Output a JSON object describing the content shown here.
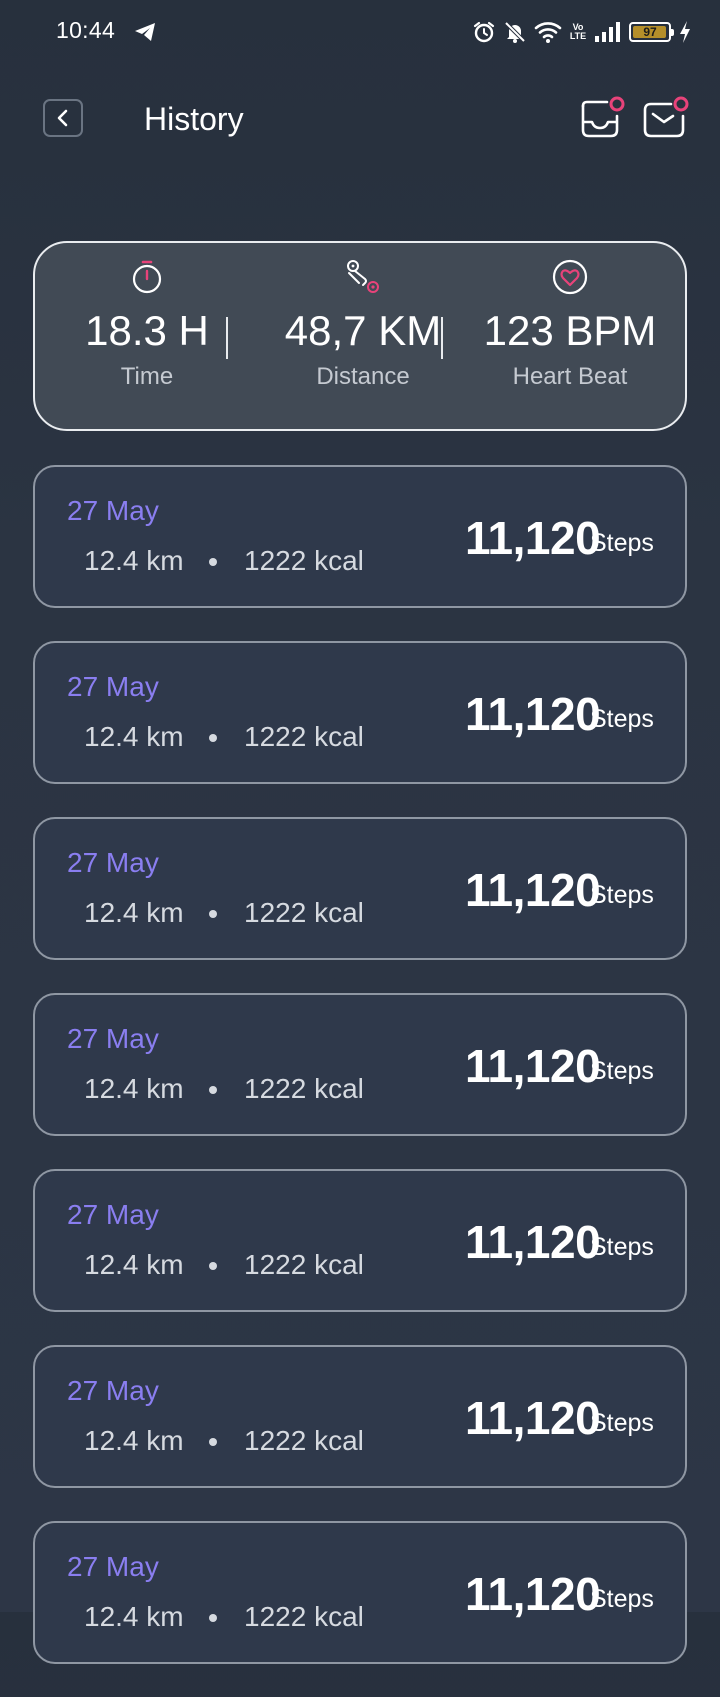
{
  "status_bar": {
    "time": "10:44",
    "battery": "97",
    "network_badge": "Vo LTE",
    "icons": [
      "telegram-icon",
      "alarm-icon",
      "bell-muted-icon",
      "wifi-icon",
      "signal-icon",
      "battery-icon",
      "charging-icon"
    ]
  },
  "header": {
    "title": "History",
    "back_icon": "chevron-left-icon",
    "actions": [
      "inbox-icon",
      "mail-icon"
    ]
  },
  "summary": {
    "time": {
      "value": "18.3 H",
      "label": "Time",
      "icon": "stopwatch-icon"
    },
    "distance": {
      "value": "48,7 KM",
      "label": "Distance",
      "icon": "route-icon"
    },
    "heart": {
      "value": "123 BPM",
      "label": "Heart Beat",
      "icon": "heart-icon"
    }
  },
  "history": [
    {
      "date": "27 May",
      "distance": "12.4 km",
      "kcal": "1222 kcal",
      "steps": "11,120",
      "steps_label": "Steps"
    },
    {
      "date": "27 May",
      "distance": "12.4 km",
      "kcal": "1222 kcal",
      "steps": "11,120",
      "steps_label": "Steps"
    },
    {
      "date": "27 May",
      "distance": "12.4 km",
      "kcal": "1222 kcal",
      "steps": "11,120",
      "steps_label": "Steps"
    },
    {
      "date": "27 May",
      "distance": "12.4 km",
      "kcal": "1222 kcal",
      "steps": "11,120",
      "steps_label": "Steps"
    },
    {
      "date": "27 May",
      "distance": "12.4 km",
      "kcal": "1222 kcal",
      "steps": "11,120",
      "steps_label": "Steps"
    },
    {
      "date": "27 May",
      "distance": "12.4 km",
      "kcal": "1222 kcal",
      "steps": "11,120",
      "steps_label": "Steps"
    },
    {
      "date": "27 May",
      "distance": "12.4 km",
      "kcal": "1222 kcal",
      "steps": "11,120",
      "steps_label": "Steps"
    }
  ],
  "colors": {
    "accent": "#e8437a",
    "date": "#8a7ef0",
    "card": "#2f394b",
    "summary_card": "#414a55"
  }
}
